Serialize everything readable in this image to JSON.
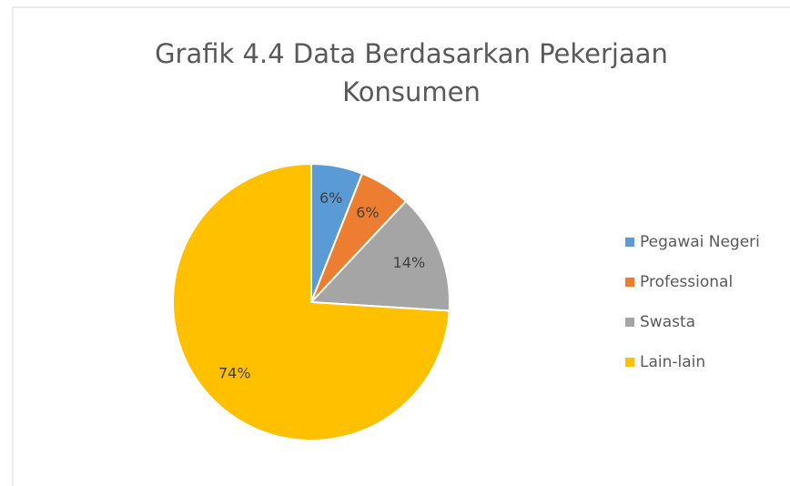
{
  "chart_data": {
    "type": "pie",
    "title": "Grafik 4.4 Data Berdasarkan Pekerjaan Konsumen",
    "categories": [
      "Pegawai Negeri",
      "Professional",
      "Swasta",
      "Lain-lain"
    ],
    "values": [
      6,
      6,
      14,
      74
    ],
    "value_labels": [
      "6%",
      "6%",
      "14%",
      "74%"
    ],
    "colors": [
      "#5b9bd5",
      "#ed7d31",
      "#a5a5a5",
      "#ffc000"
    ],
    "legend": "right"
  }
}
